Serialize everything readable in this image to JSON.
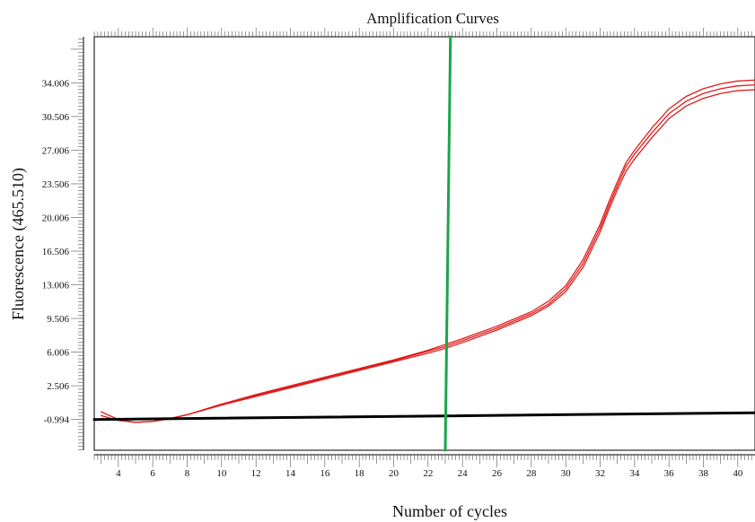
{
  "chart_data": {
    "type": "line",
    "title": "Amplification Curves",
    "xlabel": "Number of cycles",
    "ylabel": "Fluorescence (465.510)",
    "xlim": [
      2.6,
      41
    ],
    "ylim": [
      -4.2,
      38.8
    ],
    "x_ticks": [
      4,
      6,
      8,
      10,
      12,
      14,
      16,
      18,
      20,
      22,
      24,
      26,
      28,
      30,
      32,
      34,
      36,
      38,
      40
    ],
    "y_ticks": [
      "-0.994",
      "2.506",
      "6.006",
      "9.506",
      "13.006",
      "16.506",
      "20.006",
      "23.506",
      "27.006",
      "30.506",
      "34.006"
    ],
    "grid": false,
    "legend": "none",
    "colors": {
      "amplification": "#e01b1b",
      "baseline": "#000000",
      "threshold": "#1aa64a"
    },
    "series": [
      {
        "color": "#e01b1b",
        "x": [
          3,
          4,
          5,
          6,
          7,
          8,
          10,
          12,
          14,
          16,
          18,
          20,
          22,
          23,
          24,
          26,
          28,
          29,
          30,
          31,
          32,
          32.5,
          33,
          33.5,
          34,
          35,
          36,
          37,
          38,
          39,
          40,
          41
        ],
        "y": [
          -0.2,
          -1.0,
          -1.3,
          -1.2,
          -0.9,
          -0.5,
          0.6,
          1.6,
          2.5,
          3.4,
          4.3,
          5.2,
          6.2,
          6.8,
          7.4,
          8.7,
          10.2,
          11.3,
          12.9,
          15.6,
          19.3,
          21.6,
          23.7,
          25.7,
          27.0,
          29.3,
          31.3,
          32.6,
          33.4,
          33.9,
          34.2,
          34.3
        ]
      },
      {
        "color": "#e01b1b",
        "x": [
          3,
          4,
          5,
          6,
          7,
          8,
          10,
          12,
          14,
          16,
          18,
          20,
          22,
          23,
          24,
          26,
          28,
          29,
          30,
          31,
          32,
          32.5,
          33,
          33.5,
          34,
          35,
          36,
          37,
          38,
          39,
          40,
          41
        ],
        "y": [
          -0.6,
          -1.1,
          -1.3,
          -1.2,
          -0.9,
          -0.5,
          0.5,
          1.5,
          2.4,
          3.3,
          4.2,
          5.1,
          6.1,
          6.6,
          7.2,
          8.5,
          10.0,
          11.0,
          12.6,
          15.2,
          18.9,
          21.2,
          23.3,
          25.3,
          26.6,
          28.8,
          30.8,
          32.1,
          32.9,
          33.4,
          33.7,
          33.8
        ]
      },
      {
        "color": "#e01b1b",
        "x": [
          3,
          4,
          5,
          6,
          7,
          8,
          10,
          12,
          14,
          16,
          18,
          20,
          22,
          23,
          24,
          26,
          28,
          29,
          30,
          31,
          32,
          32.5,
          33,
          33.5,
          34,
          35,
          36,
          37,
          38,
          39,
          40,
          41
        ],
        "y": [
          -0.9,
          -1.1,
          -1.3,
          -1.2,
          -0.9,
          -0.5,
          0.5,
          1.4,
          2.3,
          3.2,
          4.1,
          5.0,
          5.9,
          6.4,
          7.0,
          8.3,
          9.8,
          10.8,
          12.3,
          14.8,
          18.5,
          20.8,
          22.9,
          24.8,
          26.1,
          28.3,
          30.3,
          31.6,
          32.4,
          32.9,
          33.2,
          33.3
        ]
      },
      {
        "color": "#000000",
        "x": [
          2.6,
          41
        ],
        "y": [
          -1.0,
          -0.3
        ]
      },
      {
        "color": "#1aa64a",
        "x": [
          23.3,
          23.0
        ],
        "y": [
          38.8,
          -4.2
        ]
      }
    ]
  }
}
